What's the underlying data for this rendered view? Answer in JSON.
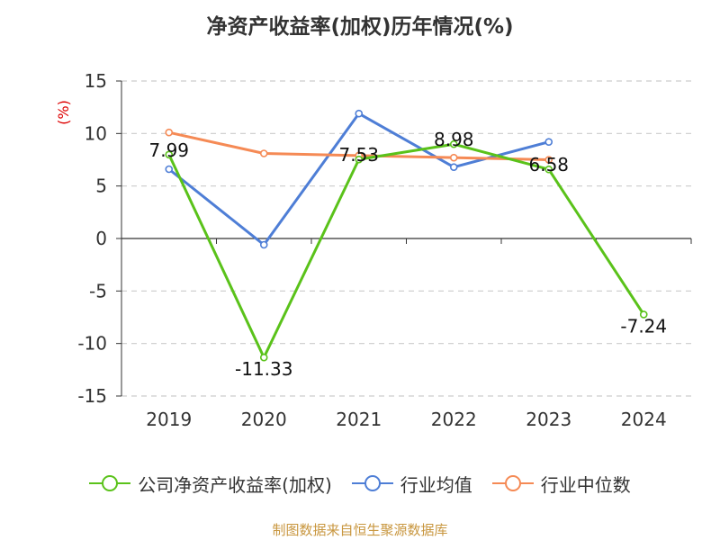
{
  "title": "净资产收益率(加权)历年情况(%)",
  "unit": "(%)",
  "source": "制图数据来自恒生聚源数据库",
  "chart_data": {
    "type": "line",
    "title": "净资产收益率(加权)历年情况(%)",
    "ylabel": "(%)",
    "xlabel": "",
    "categories": [
      "2019",
      "2020",
      "2021",
      "2022",
      "2023",
      "2024"
    ],
    "ylim": [
      -15,
      15
    ],
    "yticks": [
      15,
      10,
      5,
      0,
      -5,
      -10,
      -15
    ],
    "grid": true,
    "legend_position": "bottom",
    "series": [
      {
        "name": "公司净资产收益率(加权)",
        "color": "#5ac21a",
        "values": [
          7.99,
          -11.33,
          7.53,
          8.98,
          6.58,
          -7.24
        ],
        "labels": [
          "7.99",
          "-11.33",
          "7.53",
          "8.98",
          "6.58",
          "-7.24"
        ]
      },
      {
        "name": "行业均值",
        "color": "#4e7ed6",
        "values": [
          6.6,
          -0.6,
          11.9,
          6.8,
          9.2,
          null
        ]
      },
      {
        "name": "行业中位数",
        "color": "#f58a55",
        "values": [
          10.1,
          8.1,
          7.9,
          7.7,
          7.5,
          null
        ]
      }
    ]
  }
}
